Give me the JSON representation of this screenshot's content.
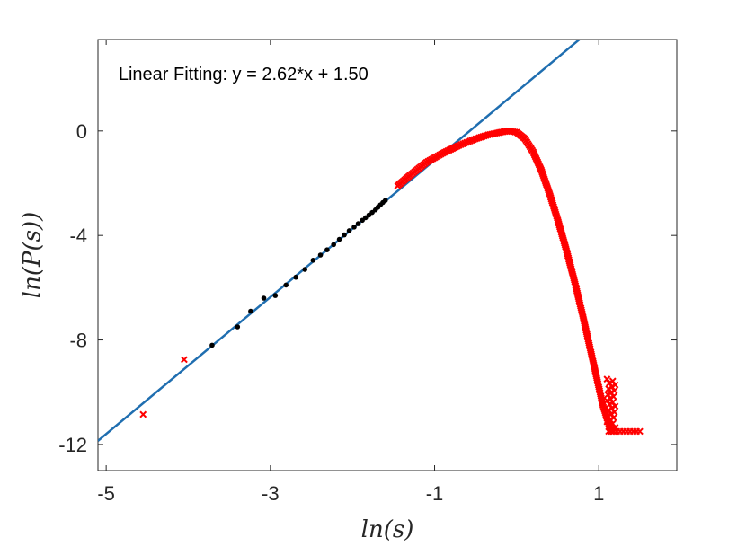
{
  "chart_data": {
    "type": "scatter",
    "title": "",
    "xlabel": "ln(s)",
    "ylabel": "ln(P(s))",
    "xlim": [
      -5.1,
      1.95
    ],
    "ylim": [
      -13.0,
      3.5
    ],
    "xticks": [
      -5,
      -3,
      -1,
      1
    ],
    "xtick_labels": [
      "-5",
      "-3",
      "-1",
      "1"
    ],
    "yticks": [
      -12,
      -8,
      -4,
      0
    ],
    "ytick_labels": [
      "-12",
      "-8",
      "-4",
      "0"
    ],
    "grid": false,
    "annotations": [
      {
        "text": "Linear Fitting:  y = 2.62*x + 1.50",
        "x": -4.85,
        "y": 1.95
      }
    ],
    "fit_line": {
      "slope": 2.62,
      "intercept": 1.5,
      "color": "#1f6eb0"
    },
    "series": [
      {
        "marker": "dot",
        "color": "#000000",
        "x": [
          -3.71,
          -3.4,
          -3.24,
          -3.08,
          -2.94,
          -2.81,
          -2.69,
          -2.58,
          -2.48,
          -2.39,
          -2.31,
          -2.23,
          -2.16,
          -2.1,
          -2.04,
          -1.98,
          -1.93,
          -1.88,
          -1.84,
          -1.8,
          -1.76,
          -1.72,
          -1.69,
          -1.66,
          -1.63,
          -1.6
        ],
        "y": [
          -8.2,
          -7.5,
          -6.9,
          -6.4,
          -6.3,
          -5.9,
          -5.6,
          -5.3,
          -4.95,
          -4.75,
          -4.55,
          -4.35,
          -4.15,
          -3.98,
          -3.82,
          -3.68,
          -3.55,
          -3.42,
          -3.32,
          -3.22,
          -3.12,
          -3.02,
          -2.92,
          -2.83,
          -2.74,
          -2.66
        ]
      },
      {
        "marker": "x",
        "color": "#ff0000",
        "outliers": {
          "x": [
            -4.55,
            -4.05
          ],
          "y": [
            -10.85,
            -8.75
          ]
        },
        "curve": {
          "x": [
            -1.45,
            -1.3,
            -1.1,
            -0.9,
            -0.7,
            -0.5,
            -0.35,
            -0.2,
            -0.1,
            0.0,
            0.1,
            0.2,
            0.3,
            0.4,
            0.5,
            0.6,
            0.7,
            0.8,
            0.85,
            0.9,
            0.95,
            1.0,
            1.05,
            1.1,
            1.15,
            1.2
          ],
          "y": [
            -2.1,
            -1.7,
            -1.2,
            -0.85,
            -0.55,
            -0.3,
            -0.15,
            -0.05,
            0.0,
            -0.05,
            -0.3,
            -0.8,
            -1.5,
            -2.4,
            -3.4,
            -4.5,
            -5.7,
            -7.0,
            -7.7,
            -8.4,
            -9.1,
            -9.8,
            -10.5,
            -11.0,
            -11.5,
            -11.5
          ]
        },
        "scatter_band": {
          "x_start": 1.1,
          "x_end": 1.2,
          "y_low": -11.5,
          "y_high": -9.5
        },
        "tail": {
          "x": [
            1.22,
            1.26,
            1.3,
            1.34,
            1.38,
            1.42,
            1.46,
            1.5
          ],
          "y": [
            -11.5,
            -11.5,
            -11.5,
            -11.5,
            -11.5,
            -11.5,
            -11.5,
            -11.5
          ]
        }
      }
    ]
  }
}
